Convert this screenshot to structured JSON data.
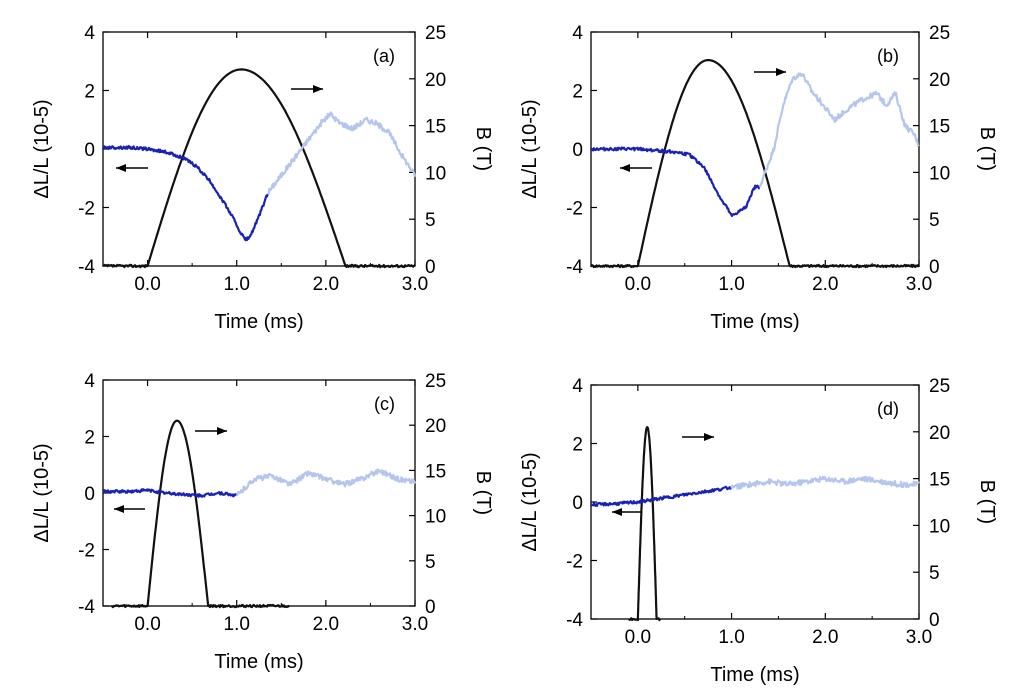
{
  "colors": {
    "field": "#111111",
    "strain_dark": "#1a22b5",
    "strain_light": "#b5c6ee",
    "axis": "#000000"
  },
  "chart_data": [
    {
      "type": "line",
      "panel_label": "(a)",
      "xlabel": "Time (ms)",
      "ylabel_left": "ΔL/L (10-5)",
      "ylabel_right": "B (T)",
      "xlim": [
        -0.5,
        3.0
      ],
      "ylim_left": [
        -4,
        4
      ],
      "ylim_right": [
        0,
        25
      ],
      "x_ticks": [
        "0.0",
        "1.0",
        "2.0",
        "3.0"
      ],
      "y_left_ticks": [
        "-4",
        "-2",
        "0",
        "2",
        "4"
      ],
      "y_right_ticks": [
        "0",
        "5",
        "10",
        "15",
        "20",
        "25"
      ],
      "series": [
        {
          "kind": "field",
          "axis": "right",
          "x": [
            -0.5,
            0.0,
            1.05,
            2.22,
            3.0
          ],
          "peak_x": 1.05,
          "peak": 21.0,
          "baseline": 0.0
        },
        {
          "kind": "strain_dark",
          "axis": "left",
          "x": [
            -0.5,
            -0.2,
            0.0,
            0.2,
            0.4,
            0.55,
            0.7,
            0.85,
            0.95,
            1.05,
            1.1,
            1.15,
            1.25,
            1.35
          ],
          "y": [
            0.05,
            0.05,
            0.0,
            -0.1,
            -0.3,
            -0.6,
            -1.1,
            -1.8,
            -2.3,
            -2.9,
            -3.1,
            -3.0,
            -2.3,
            -1.5
          ]
        },
        {
          "kind": "strain_light",
          "axis": "left",
          "x": [
            1.35,
            1.5,
            1.65,
            1.8,
            1.95,
            2.05,
            2.15,
            2.3,
            2.45,
            2.55,
            2.7,
            2.85,
            3.0
          ],
          "y": [
            -1.5,
            -0.9,
            -0.3,
            0.3,
            0.9,
            1.2,
            0.9,
            0.7,
            1.0,
            0.9,
            0.6,
            -0.2,
            -0.9
          ]
        }
      ],
      "annotations": [
        {
          "text": "←",
          "direction": "left",
          "target": "left-axis"
        },
        {
          "text": "→",
          "direction": "right",
          "target": "right-axis"
        }
      ]
    },
    {
      "type": "line",
      "panel_label": "(b)",
      "xlabel": "Time (ms)",
      "ylabel_left": "ΔL/L (10-5)",
      "ylabel_right": "B (T)",
      "xlim": [
        -0.5,
        3.0
      ],
      "ylim_left": [
        -4,
        4
      ],
      "ylim_right": [
        0,
        25
      ],
      "x_ticks": [
        "0.0",
        "1.0",
        "2.0",
        "3.0"
      ],
      "y_left_ticks": [
        "-4",
        "-2",
        "0",
        "2",
        "4"
      ],
      "y_right_ticks": [
        "0",
        "5",
        "10",
        "15",
        "20",
        "25"
      ],
      "series": [
        {
          "kind": "field",
          "axis": "right",
          "x": [
            -0.5,
            0.0,
            0.75,
            1.62,
            3.0
          ],
          "peak_x": 0.75,
          "peak": 22.0,
          "baseline": 0.0
        },
        {
          "kind": "strain_dark",
          "axis": "left",
          "x": [
            -0.5,
            -0.2,
            0.0,
            0.2,
            0.4,
            0.55,
            0.7,
            0.8,
            0.9,
            0.95,
            1.0,
            1.05,
            1.15,
            1.2,
            1.25,
            1.3
          ],
          "y": [
            0.0,
            0.0,
            0.0,
            -0.05,
            -0.1,
            -0.2,
            -0.6,
            -1.2,
            -1.8,
            -2.0,
            -2.3,
            -2.2,
            -2.0,
            -1.6,
            -1.3,
            -1.3
          ]
        },
        {
          "kind": "strain_light",
          "axis": "left",
          "x": [
            1.3,
            1.45,
            1.55,
            1.65,
            1.75,
            1.85,
            1.95,
            2.1,
            2.25,
            2.4,
            2.55,
            2.65,
            2.75,
            2.85,
            2.95,
            3.0
          ],
          "y": [
            -1.3,
            0.0,
            1.5,
            2.4,
            2.6,
            2.0,
            1.6,
            1.0,
            1.4,
            1.7,
            1.9,
            1.5,
            1.9,
            0.8,
            0.5,
            0.1
          ]
        }
      ],
      "annotations": [
        {
          "text": "←",
          "direction": "left",
          "target": "left-axis"
        },
        {
          "text": "→",
          "direction": "right",
          "target": "right-axis"
        }
      ]
    },
    {
      "type": "line",
      "panel_label": "(c)",
      "xlabel": "Time (ms)",
      "ylabel_left": "ΔL/L (10-5)",
      "ylabel_right": "B (T)",
      "xlim": [
        -0.5,
        3.0
      ],
      "ylim_left": [
        -4,
        4
      ],
      "ylim_right": [
        0,
        25
      ],
      "x_ticks": [
        "0.0",
        "1.0",
        "2.0",
        "3.0"
      ],
      "y_left_ticks": [
        "-4",
        "-2",
        "0",
        "2",
        "4"
      ],
      "y_right_ticks": [
        "0",
        "5",
        "10",
        "15",
        "20",
        "25"
      ],
      "series": [
        {
          "kind": "field",
          "axis": "right",
          "x": [
            -0.4,
            0.0,
            0.33,
            0.68,
            1.6
          ],
          "peak_x": 0.33,
          "peak": 20.5,
          "baseline": 0.0
        },
        {
          "kind": "strain_dark",
          "axis": "left",
          "x": [
            -0.5,
            -0.2,
            0.0,
            0.2,
            0.4,
            0.6,
            0.8,
            1.0
          ],
          "y": [
            0.05,
            0.05,
            0.1,
            0.0,
            -0.05,
            -0.1,
            0.0,
            -0.1
          ]
        },
        {
          "kind": "strain_light",
          "axis": "left",
          "x": [
            1.0,
            1.2,
            1.4,
            1.6,
            1.8,
            2.0,
            2.2,
            2.4,
            2.6,
            2.8,
            3.0
          ],
          "y": [
            -0.1,
            0.5,
            0.6,
            0.3,
            0.7,
            0.5,
            0.3,
            0.5,
            0.8,
            0.5,
            0.4
          ]
        }
      ],
      "annotations": [
        {
          "text": "←",
          "direction": "left",
          "target": "left-axis"
        },
        {
          "text": "→",
          "direction": "right",
          "target": "right-axis"
        }
      ]
    },
    {
      "type": "line",
      "panel_label": "(d)",
      "xlabel": "Time (ms)",
      "ylabel_left": "ΔL/L (10-5)",
      "ylabel_right": "B (T)",
      "xlim": [
        -0.5,
        3.0
      ],
      "ylim_left": [
        -4,
        4
      ],
      "ylim_right": [
        0,
        25
      ],
      "x_ticks": [
        "0.0",
        "1.0",
        "2.0",
        "3.0"
      ],
      "y_left_ticks": [
        "-4",
        "-2",
        "0",
        "2",
        "4"
      ],
      "y_right_ticks": [
        "0",
        "5",
        "10",
        "15",
        "20",
        "25"
      ],
      "series": [
        {
          "kind": "field",
          "axis": "right",
          "x": [
            -0.1,
            0.0,
            0.1,
            0.2,
            0.25
          ],
          "peak_x": 0.1,
          "peak": 20.5,
          "baseline": 0.0
        },
        {
          "kind": "strain_dark",
          "axis": "left",
          "x": [
            -0.5,
            -0.2,
            0.0,
            0.2,
            0.4,
            0.6,
            0.8,
            1.0
          ],
          "y": [
            -0.1,
            -0.05,
            0.0,
            0.1,
            0.2,
            0.3,
            0.4,
            0.5
          ]
        },
        {
          "kind": "strain_light",
          "axis": "left",
          "x": [
            1.0,
            1.2,
            1.4,
            1.6,
            1.8,
            2.0,
            2.2,
            2.4,
            2.6,
            2.8,
            3.0
          ],
          "y": [
            0.5,
            0.6,
            0.7,
            0.6,
            0.7,
            0.8,
            0.7,
            0.8,
            0.7,
            0.6,
            0.6
          ]
        }
      ],
      "annotations": [
        {
          "text": "←",
          "direction": "left",
          "target": "left-axis"
        },
        {
          "text": "→",
          "direction": "right",
          "target": "right-axis"
        }
      ]
    }
  ]
}
